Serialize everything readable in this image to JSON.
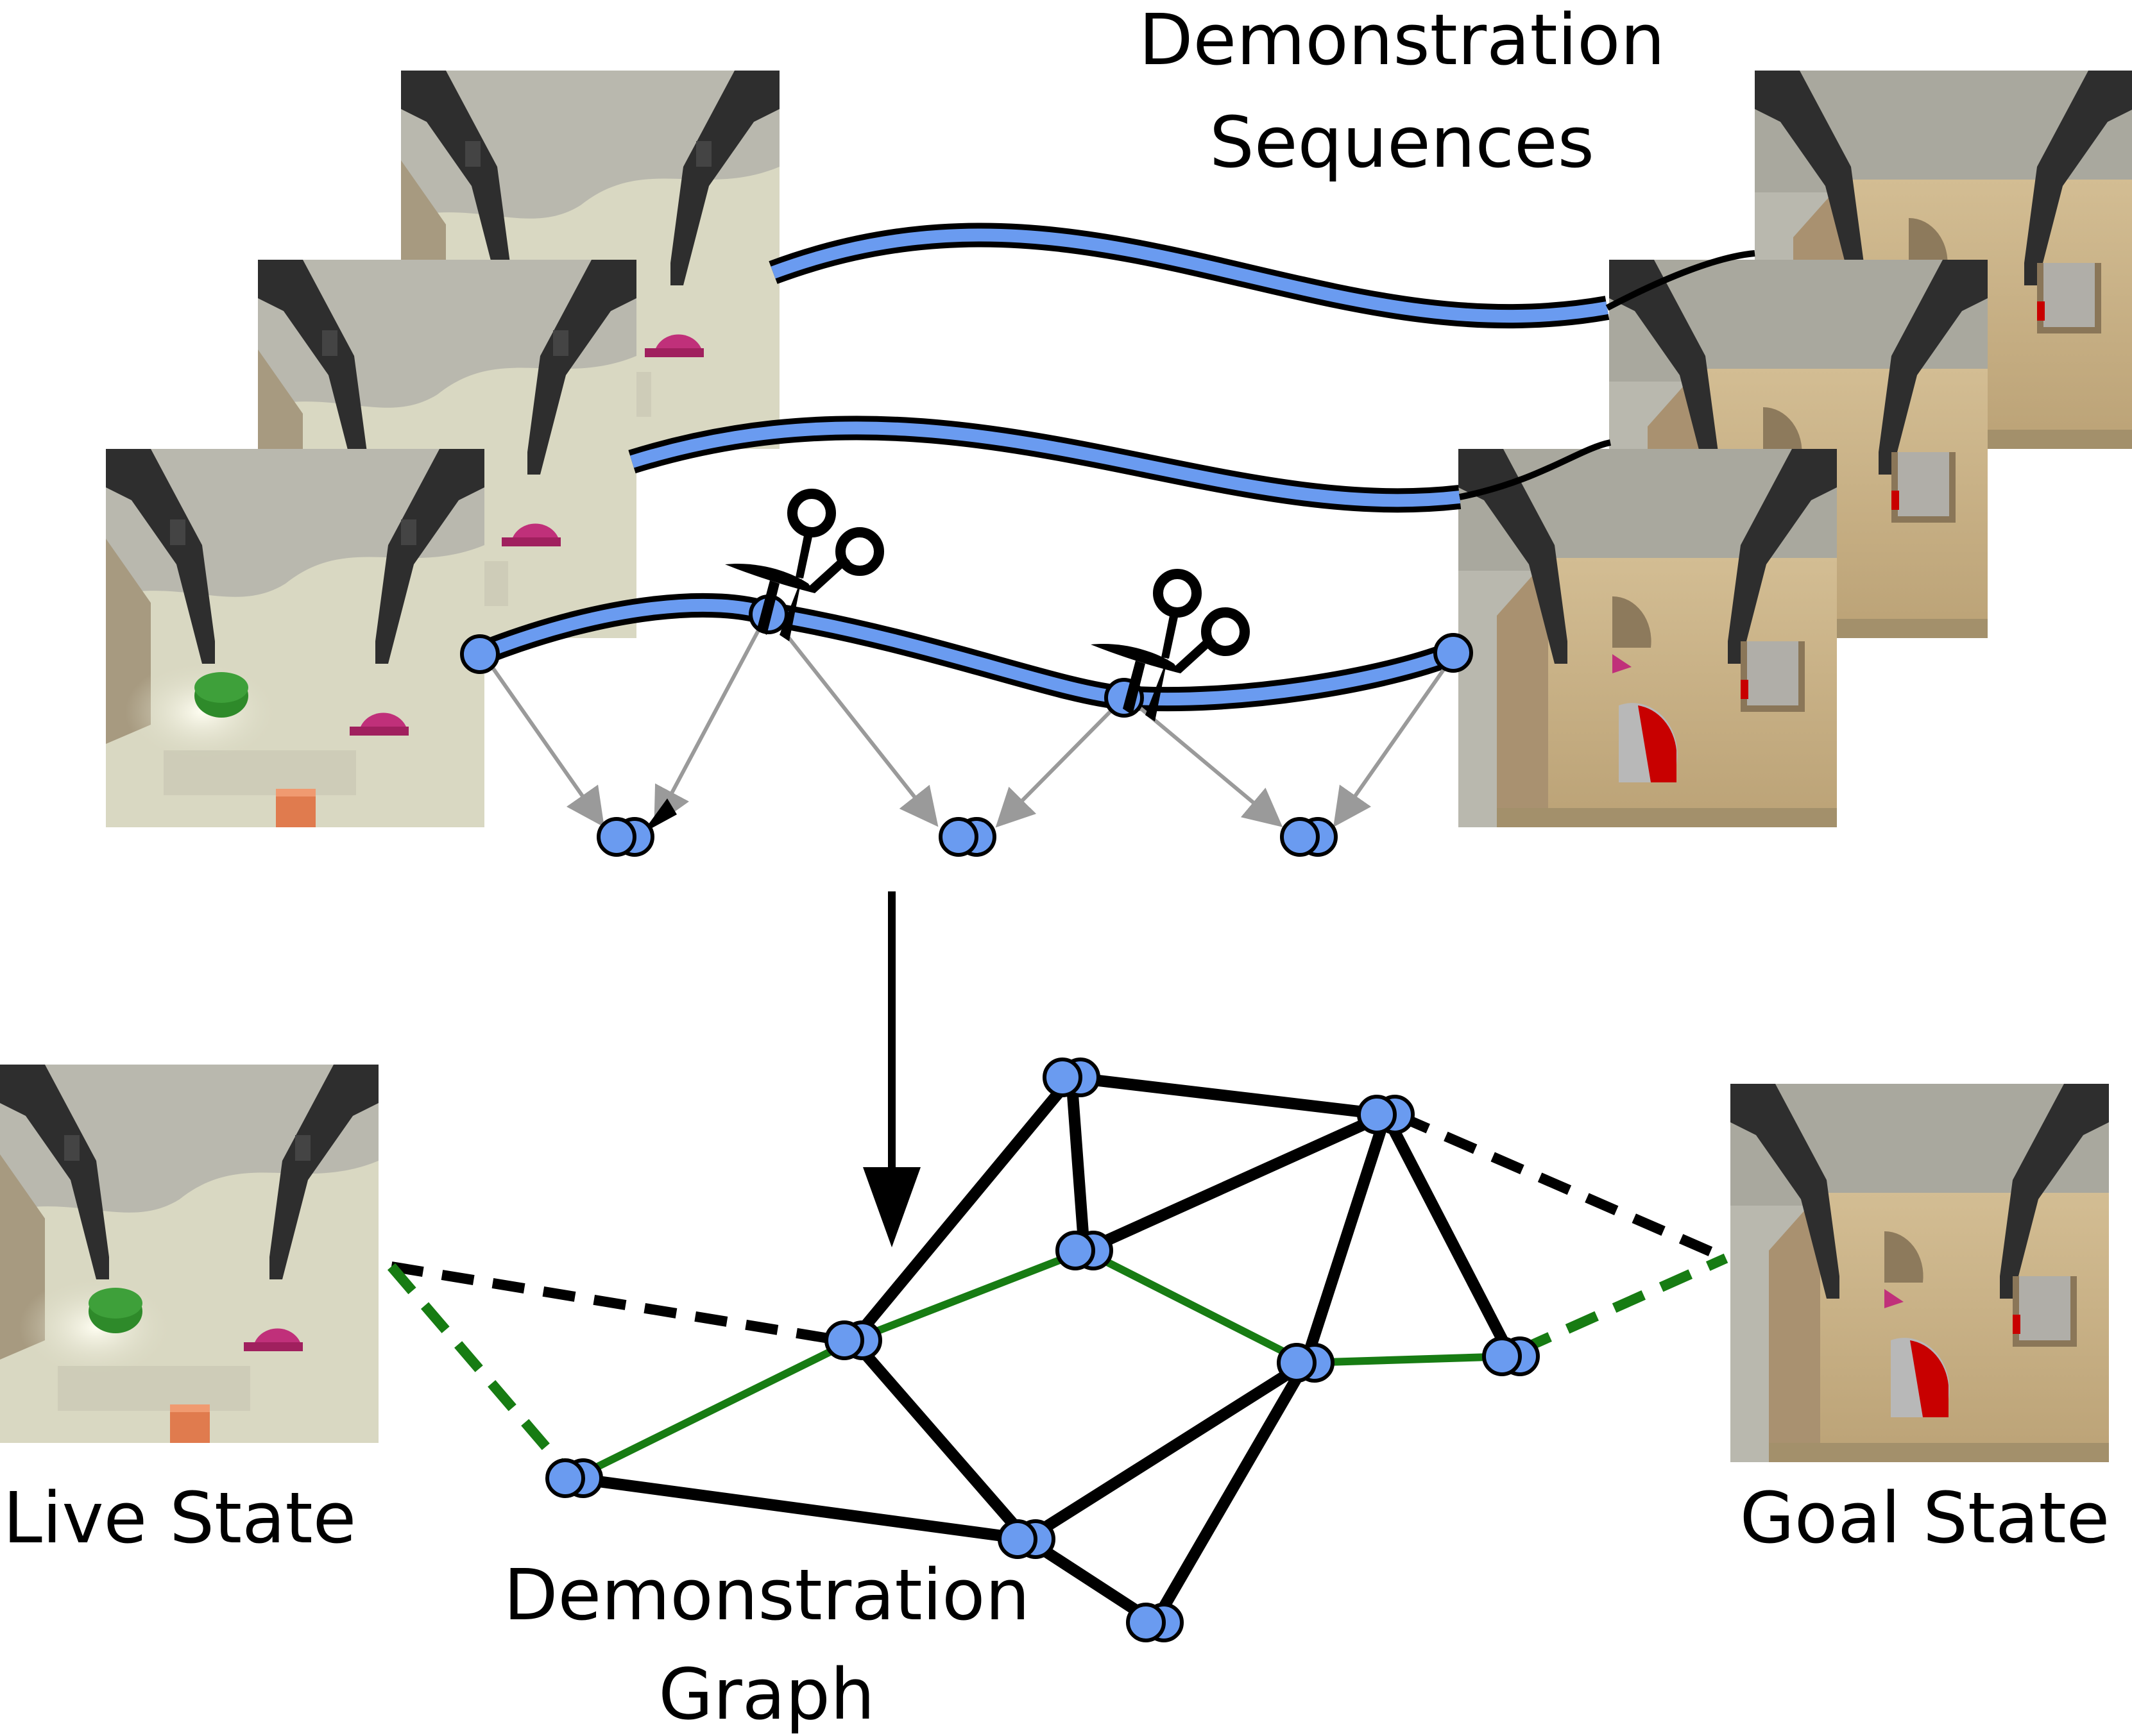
{
  "labels": {
    "sequences_title": [
      "Demonstration",
      "Sequences"
    ],
    "live_state": "Live State",
    "graph_title": [
      "Demonstration",
      "Graph"
    ],
    "goal_state": "Goal State"
  },
  "colors": {
    "node_fill": "#6a9bf0",
    "node_stroke": "#000000",
    "path_edge": "#177c13",
    "graph_edge": "#000000",
    "trajectory_fill": "#6a9bf0",
    "arrow_gray": "#9a9a9a",
    "table_light": "#d9d8c2",
    "wall_gray": "#b9b8ae",
    "gripper": "#2e2e2e",
    "box_tan": "#c7ae84",
    "green_block": "#2e8a2a",
    "magenta_block": "#c0307a",
    "orange_block": "#e07b4e",
    "red_disk": "#c80000"
  },
  "icons": [
    "scissors-icon",
    "down-arrow-icon"
  ]
}
